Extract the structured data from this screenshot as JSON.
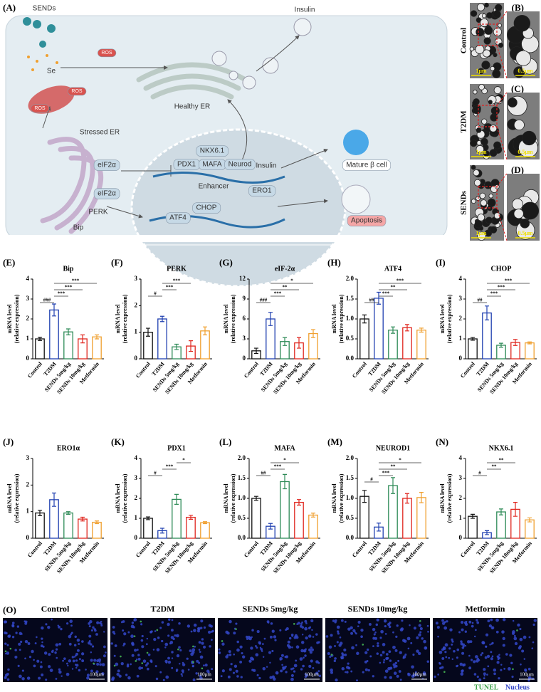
{
  "panels": {
    "A": "(A)",
    "B": "(B)",
    "C": "(C)",
    "D": "(D)",
    "O": "(O)"
  },
  "diagram": {
    "labels": [
      "SENDs",
      "ROS",
      "Se",
      "ROS",
      "ROS",
      "Insulin",
      "Healthy ER",
      "Stressed ER",
      "NKX6.1",
      "PDX1",
      "MAFA",
      "Neurod",
      "Insulin",
      "Enhancer",
      "Mature β cell",
      "eIF2α",
      "eIF2α",
      "CHOP",
      "ERO1",
      "ATF4",
      "Apoptosis",
      "Bip",
      "PERK"
    ]
  },
  "em": {
    "rows": [
      "Control",
      "T2DM",
      "SENDs"
    ],
    "scale_bars": [
      "1μm",
      "0.5μm"
    ]
  },
  "tunel": {
    "titles": [
      "Control",
      "T2DM",
      "SENDs 5mg/kg",
      "SENDs 10mg/kg",
      "Metformin"
    ],
    "scale_bar": "100μm",
    "legend": [
      {
        "name": "TUNEL",
        "color": "#3fa34d"
      },
      {
        "name": "Nucleus",
        "color": "#3346c8"
      }
    ]
  },
  "chart_data": [
    {
      "type": "bar",
      "panel": "(E)",
      "title": "Bip",
      "ylabel": "mRNA level",
      "ylabel2": "(relative expression)",
      "categories": [
        "Control",
        "T2DM",
        "SENDs 5mg/kg",
        "SENDs 10mg/kg",
        "Metformin"
      ],
      "colors": [
        "#111111",
        "#2040b0",
        "#2e8b57",
        "#e0261e",
        "#f0a030"
      ],
      "values": [
        1.0,
        2.45,
        1.35,
        1.0,
        1.1
      ],
      "errors": [
        0.08,
        0.3,
        0.15,
        0.2,
        0.1
      ],
      "ylim": [
        0,
        4
      ],
      "yticks": [
        0,
        1,
        2,
        3,
        4
      ],
      "brackets": [
        {
          "from": 0,
          "to": 1,
          "label": "###"
        },
        {
          "from": 1,
          "to": 2,
          "label": "***"
        },
        {
          "from": 1,
          "to": 3,
          "label": "***"
        },
        {
          "from": 1,
          "to": 4,
          "label": "***"
        }
      ]
    },
    {
      "type": "bar",
      "panel": "(F)",
      "title": "PERK",
      "ylabel": "mRNA level",
      "ylabel2": "(relative expression)",
      "categories": [
        "Control",
        "T2DM",
        "SENDs 5mg/kg",
        "SENDs 10mg/kg",
        "Metformin"
      ],
      "colors": [
        "#111111",
        "#2040b0",
        "#2e8b57",
        "#e0261e",
        "#f0a030"
      ],
      "values": [
        1.0,
        1.5,
        0.45,
        0.48,
        1.05
      ],
      "errors": [
        0.15,
        0.1,
        0.1,
        0.2,
        0.15
      ],
      "ylim": [
        0,
        3
      ],
      "yticks": [
        0,
        1,
        2,
        3
      ],
      "brackets": [
        {
          "from": 0,
          "to": 1,
          "label": "#"
        },
        {
          "from": 1,
          "to": 2,
          "label": "***"
        },
        {
          "from": 1,
          "to": 3,
          "label": "***"
        }
      ]
    },
    {
      "type": "bar",
      "panel": "(G)",
      "title": "eIF-2α",
      "ylabel": "mRNA level",
      "ylabel2": "(relative expression)",
      "categories": [
        "Control",
        "T2DM",
        "SENDs 5mg/kg",
        "SENDs 10mg/kg",
        "Metformin"
      ],
      "colors": [
        "#111111",
        "#2040b0",
        "#2e8b57",
        "#e0261e",
        "#f0a030"
      ],
      "values": [
        1.2,
        6.0,
        2.6,
        2.4,
        3.8
      ],
      "errors": [
        0.4,
        1.0,
        0.6,
        0.8,
        0.6
      ],
      "ylim": [
        0,
        12
      ],
      "yticks": [
        0,
        3,
        6,
        9,
        12
      ],
      "brackets": [
        {
          "from": 0,
          "to": 1,
          "label": "###"
        },
        {
          "from": 1,
          "to": 2,
          "label": "***"
        },
        {
          "from": 1,
          "to": 3,
          "label": "**"
        },
        {
          "from": 1,
          "to": 4,
          "label": "*"
        }
      ]
    },
    {
      "type": "bar",
      "panel": "(H)",
      "title": "ATF4",
      "ylabel": "mRNA level",
      "ylabel2": "(relative expression)",
      "categories": [
        "Control",
        "T2DM",
        "SENDs 5mg/kg",
        "SENDs 10mg/kg",
        "Metformin"
      ],
      "colors": [
        "#111111",
        "#2040b0",
        "#2e8b57",
        "#e0261e",
        "#f0a030"
      ],
      "values": [
        1.0,
        1.52,
        0.72,
        0.78,
        0.72
      ],
      "errors": [
        0.1,
        0.15,
        0.08,
        0.08,
        0.05
      ],
      "ylim": [
        0,
        2
      ],
      "yticks": [
        {
          "value": 0,
          "label": "0.0"
        },
        0.5,
        {
          "value": 1,
          "label": "1.0"
        },
        1.5,
        {
          "value": 2,
          "label": "2.0"
        }
      ],
      "brackets": [
        {
          "from": 0,
          "to": 1,
          "label": "##"
        },
        {
          "from": 1,
          "to": 2,
          "label": "***"
        },
        {
          "from": 1,
          "to": 3,
          "label": "**"
        },
        {
          "from": 1,
          "to": 4,
          "label": "***"
        }
      ]
    },
    {
      "type": "bar",
      "panel": "(I)",
      "title": "CHOP",
      "ylabel": "mRNA level",
      "ylabel2": "(relative expression)",
      "categories": [
        "Control",
        "T2DM",
        "SENDs 5mg/kg",
        "SENDs 10mg/kg",
        "Metformin"
      ],
      "colors": [
        "#111111",
        "#2040b0",
        "#2e8b57",
        "#e0261e",
        "#f0a030"
      ],
      "values": [
        1.0,
        2.3,
        0.68,
        0.82,
        0.8
      ],
      "errors": [
        0.07,
        0.35,
        0.1,
        0.15,
        0.05
      ],
      "ylim": [
        0,
        4
      ],
      "yticks": [
        0,
        1,
        2,
        3,
        4
      ],
      "brackets": [
        {
          "from": 0,
          "to": 1,
          "label": "##"
        },
        {
          "from": 1,
          "to": 2,
          "label": "***"
        },
        {
          "from": 1,
          "to": 3,
          "label": "***"
        },
        {
          "from": 1,
          "to": 4,
          "label": "***"
        }
      ]
    },
    {
      "type": "bar",
      "panel": "(J)",
      "title": "ERO1α",
      "ylabel": "mRNA level",
      "ylabel2": "(relative expression)",
      "categories": [
        "Control",
        "T2DM",
        "SENDs 5mg/kg",
        "SENDs 10mg/kg",
        "Metformin"
      ],
      "colors": [
        "#111111",
        "#2040b0",
        "#2e8b57",
        "#e0261e",
        "#f0a030"
      ],
      "values": [
        0.95,
        1.45,
        0.95,
        0.72,
        0.6
      ],
      "errors": [
        0.1,
        0.25,
        0.05,
        0.07,
        0.05
      ],
      "ylim": [
        0,
        3
      ],
      "yticks": [
        0,
        1,
        2,
        3
      ],
      "brackets": []
    },
    {
      "type": "bar",
      "panel": "(K)",
      "title": "PDX1",
      "ylabel": "mRNA level",
      "ylabel2": "(relative expression)",
      "categories": [
        "Control",
        "T2DM",
        "SENDs 5mg/kg",
        "SENDs 10mg/kg",
        "Metformin"
      ],
      "colors": [
        "#111111",
        "#2040b0",
        "#2e8b57",
        "#e0261e",
        "#f0a030"
      ],
      "values": [
        1.0,
        0.38,
        1.95,
        1.05,
        0.78
      ],
      "errors": [
        0.07,
        0.12,
        0.25,
        0.1,
        0.05
      ],
      "ylim": [
        0,
        4
      ],
      "yticks": [
        0,
        1,
        2,
        3,
        4
      ],
      "brackets": [
        {
          "from": 0,
          "to": 1,
          "label": "#"
        },
        {
          "from": 1,
          "to": 2,
          "label": "***"
        },
        {
          "from": 2,
          "to": 3,
          "label": "*"
        }
      ]
    },
    {
      "type": "bar",
      "panel": "(L)",
      "title": "MAFA",
      "ylabel": "mRNA level",
      "ylabel2": "(relative expression)",
      "categories": [
        "Control",
        "T2DM",
        "SENDs 5mg/kg",
        "SENDs 10mg/kg",
        "Metformin"
      ],
      "colors": [
        "#111111",
        "#2040b0",
        "#2e8b57",
        "#e0261e",
        "#f0a030"
      ],
      "values": [
        1.0,
        0.3,
        1.42,
        0.9,
        0.58
      ],
      "errors": [
        0.05,
        0.07,
        0.18,
        0.07,
        0.05
      ],
      "ylim": [
        0,
        2
      ],
      "yticks": [
        {
          "value": 0,
          "label": "0.0"
        },
        0.5,
        {
          "value": 1,
          "label": "1.0"
        },
        1.5,
        {
          "value": 2,
          "label": "2.0"
        }
      ],
      "brackets": [
        {
          "from": 0,
          "to": 1,
          "label": "##"
        },
        {
          "from": 1,
          "to": 2,
          "label": "***"
        },
        {
          "from": 1,
          "to": 3,
          "label": "*"
        }
      ]
    },
    {
      "type": "bar",
      "panel": "(M)",
      "title": "NEUROD1",
      "ylabel": "mRNA level",
      "ylabel2": "(relative expression)",
      "categories": [
        "Control",
        "T2DM",
        "SENDs 5mg/kg",
        "SENDs 10mg/kg",
        "Metformin"
      ],
      "colors": [
        "#111111",
        "#2040b0",
        "#2e8b57",
        "#e0261e",
        "#f0a030"
      ],
      "values": [
        1.05,
        0.28,
        1.32,
        1.0,
        1.02
      ],
      "errors": [
        0.15,
        0.1,
        0.2,
        0.12,
        0.13
      ],
      "ylim": [
        0,
        2
      ],
      "yticks": [
        {
          "value": 0,
          "label": "0.0"
        },
        0.5,
        {
          "value": 1,
          "label": "1.0"
        },
        1.5,
        {
          "value": 2,
          "label": "2.0"
        }
      ],
      "brackets": [
        {
          "from": 0,
          "to": 1,
          "label": "#"
        },
        {
          "from": 1,
          "to": 2,
          "label": "***"
        },
        {
          "from": 1,
          "to": 3,
          "label": "**"
        },
        {
          "from": 1,
          "to": 4,
          "label": "*"
        }
      ]
    },
    {
      "type": "bar",
      "panel": "(N)",
      "title": "NKX6.1",
      "ylabel": "mRNA level",
      "ylabel2": "(relative expression)",
      "categories": [
        "Control",
        "T2DM",
        "SENDs 5mg/kg",
        "SENDs 10mg/kg",
        "Metformin"
      ],
      "colors": [
        "#111111",
        "#2040b0",
        "#2e8b57",
        "#e0261e",
        "#f0a030"
      ],
      "values": [
        1.1,
        0.28,
        1.32,
        1.45,
        0.92
      ],
      "errors": [
        0.1,
        0.1,
        0.15,
        0.35,
        0.1
      ],
      "ylim": [
        0,
        4
      ],
      "yticks": [
        0,
        1,
        2,
        3,
        4
      ],
      "brackets": [
        {
          "from": 0,
          "to": 1,
          "label": "#"
        },
        {
          "from": 1,
          "to": 2,
          "label": "**"
        },
        {
          "from": 1,
          "to": 3,
          "label": "**"
        }
      ]
    }
  ]
}
